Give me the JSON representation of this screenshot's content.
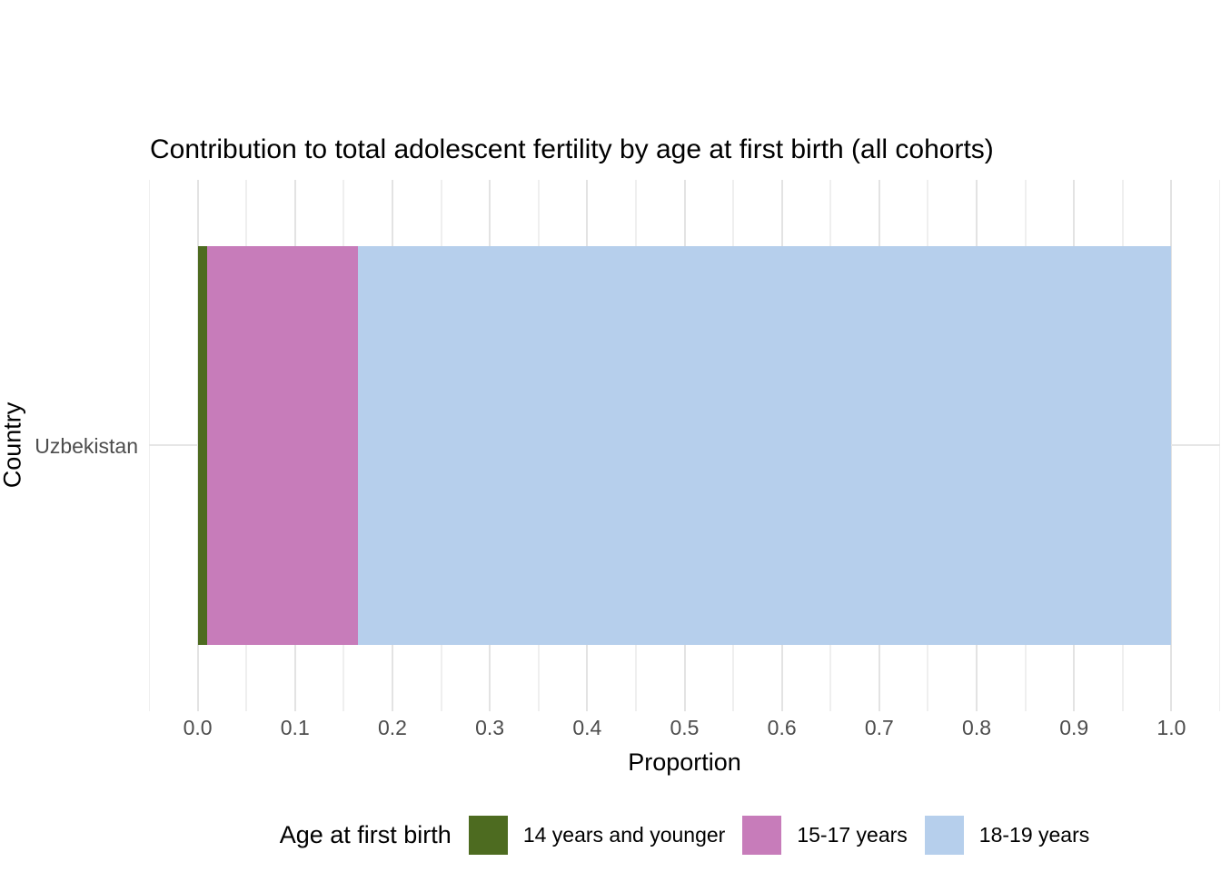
{
  "chart_data": {
    "type": "bar",
    "orientation": "horizontal",
    "stacked": true,
    "title": "Contribution to total adolescent fertility by age at first birth (all cohorts)",
    "xlabel": "Proportion",
    "ylabel": "Country",
    "categories": [
      "Uzbekistan"
    ],
    "series": [
      {
        "name": "14 years and younger",
        "values": [
          0.01
        ],
        "color": "#4d6b20"
      },
      {
        "name": "15-17 years",
        "values": [
          0.155
        ],
        "color": "#c77cba"
      },
      {
        "name": "18-19 years",
        "values": [
          0.835
        ],
        "color": "#b6cfec"
      }
    ],
    "xlim": [
      -0.05,
      1.05
    ],
    "x_ticks": [
      0.0,
      0.1,
      0.2,
      0.3,
      0.4,
      0.5,
      0.6,
      0.7,
      0.8,
      0.9,
      1.0
    ],
    "x_tick_labels": [
      "0.0",
      "0.1",
      "0.2",
      "0.3",
      "0.4",
      "0.5",
      "0.6",
      "0.7",
      "0.8",
      "0.9",
      "1.0"
    ],
    "legend_title": "Age at first birth",
    "legend_position": "bottom",
    "grid": true,
    "colors": {
      "background": "#ffffff",
      "grid_major": "#e3e3e3",
      "grid_minor": "#efefef",
      "grid_horizontal": "#e6e6e6",
      "tick_text": "#4d4d4d",
      "title_text": "#000000"
    }
  }
}
